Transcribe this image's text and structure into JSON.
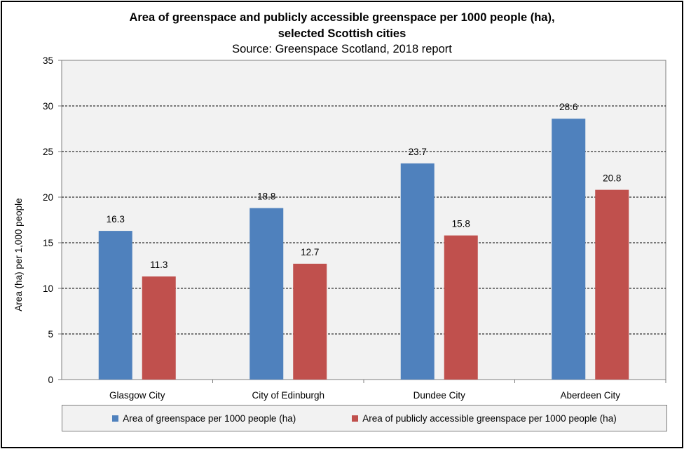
{
  "chart_data": {
    "type": "bar",
    "title_line1": "Area of greenspace and publicly accessible greenspace per 1000 people (ha),",
    "title_line2": "selected Scottish cities",
    "subtitle": "Source: Greenspace Scotland, 2018 report",
    "xlabel": "",
    "ylabel": "Area (ha) per 1,000 people",
    "ylim": [
      0,
      35
    ],
    "yticks": [
      0,
      5,
      10,
      15,
      20,
      25,
      30,
      35
    ],
    "grid": "horizontal-dashed",
    "legend_position": "bottom",
    "categories": [
      "Glasgow City",
      "City of Edinburgh",
      "Dundee City",
      "Aberdeen City"
    ],
    "series": [
      {
        "name": "Area of greenspace per 1000 people (ha)",
        "color": "#4f81bd",
        "values": [
          16.3,
          18.8,
          23.7,
          28.6
        ]
      },
      {
        "name": "Area of publicly accessible greenspace per 1000 people (ha)",
        "color": "#c0504d",
        "values": [
          11.3,
          12.7,
          15.8,
          20.8
        ]
      }
    ]
  }
}
